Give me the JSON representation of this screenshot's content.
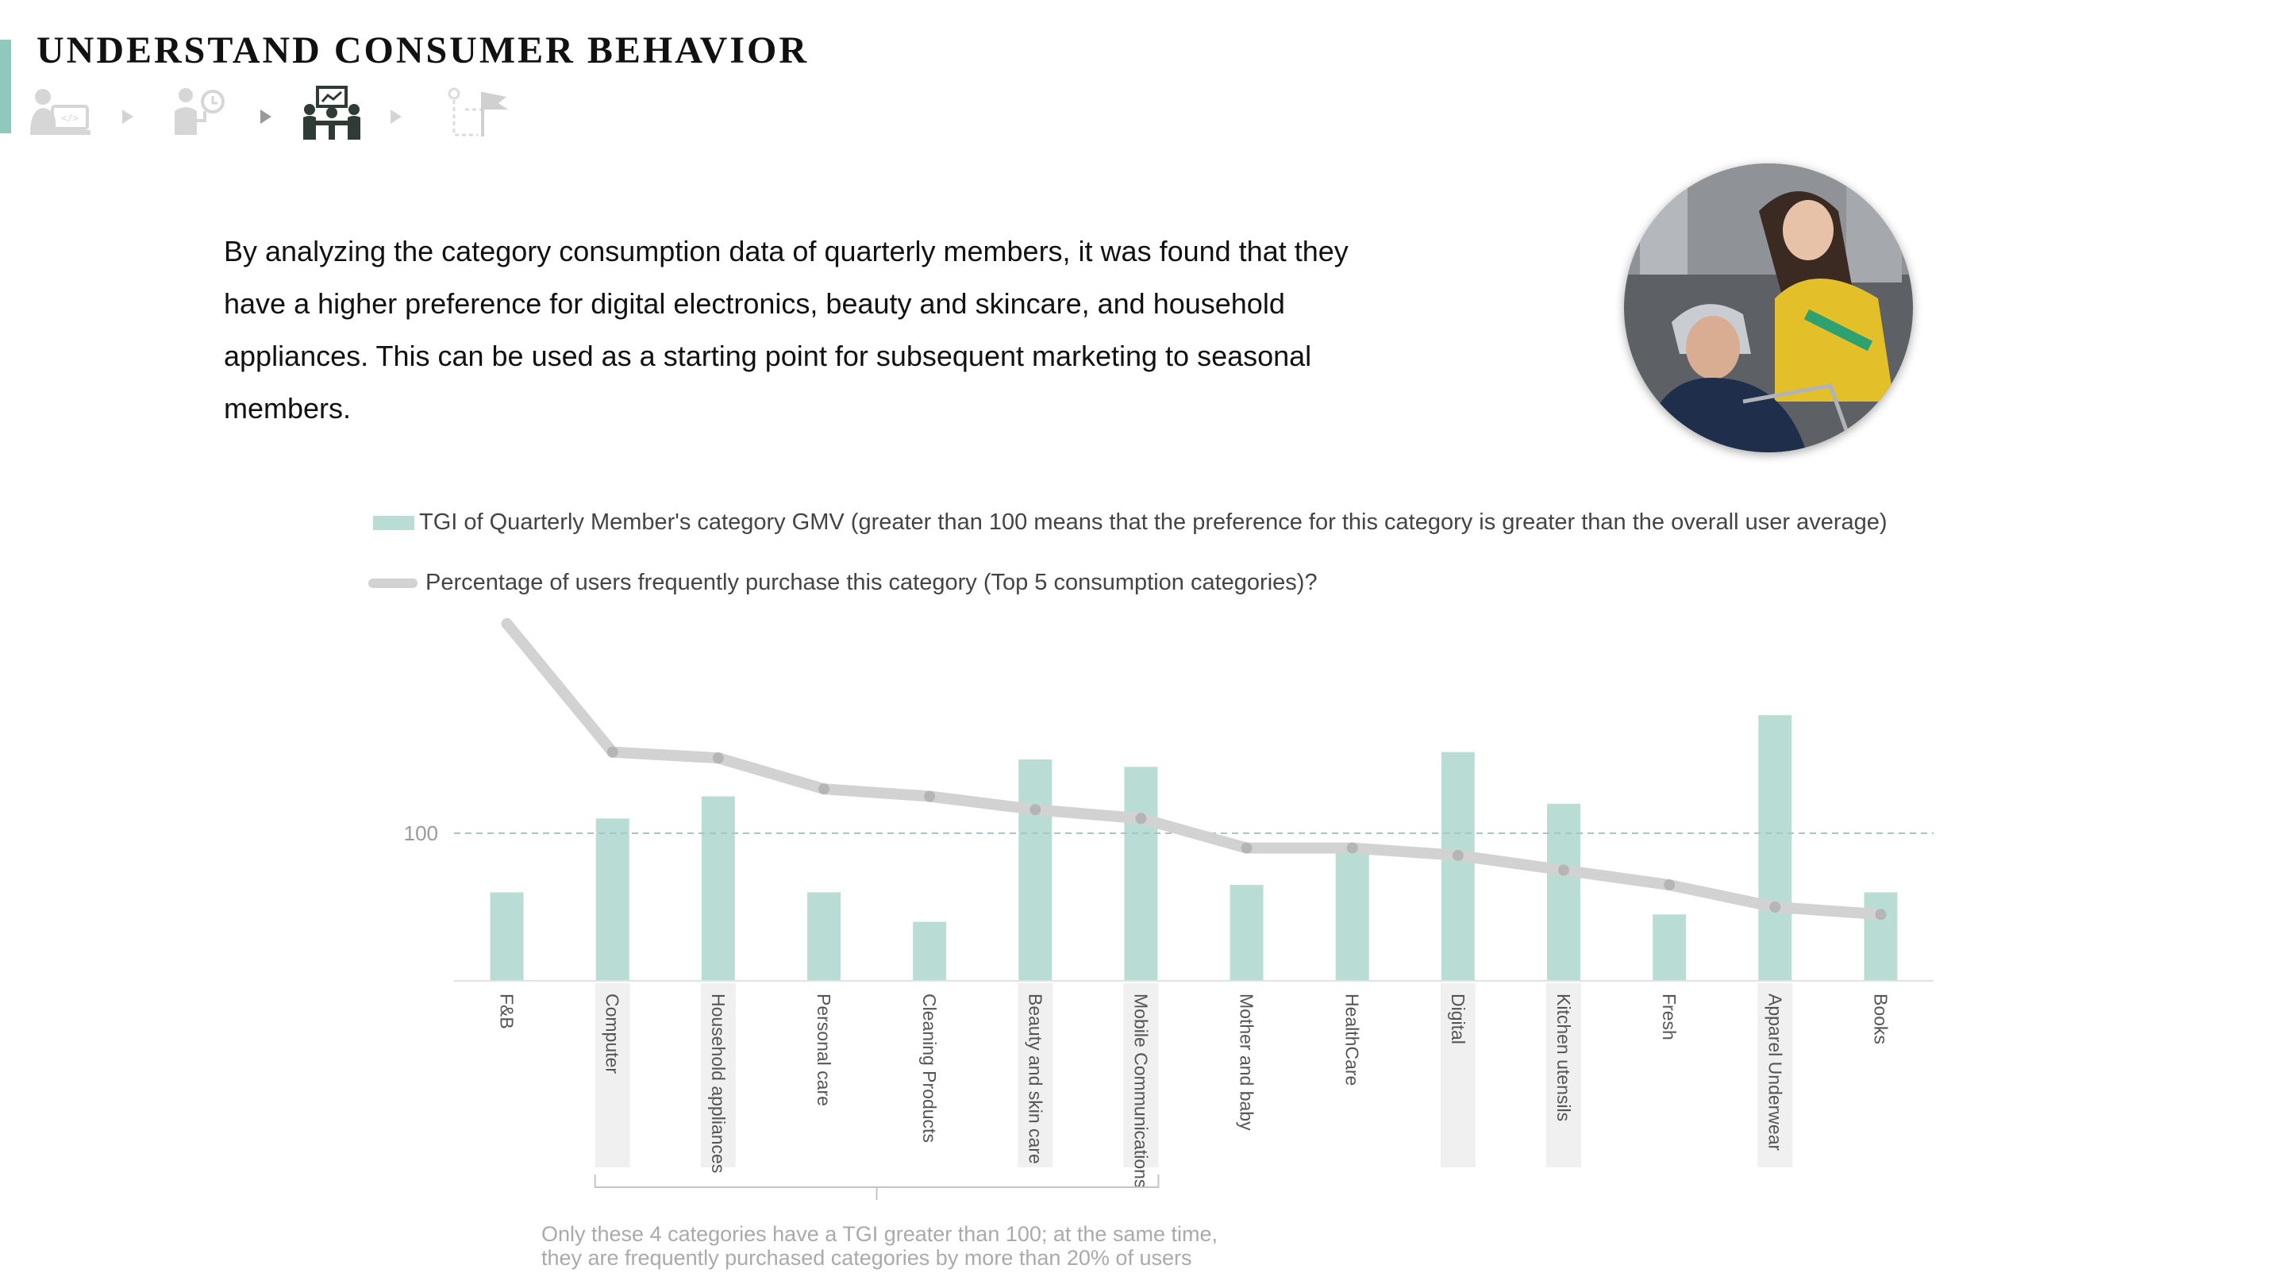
{
  "header": {
    "title": "UNDERSTAND CONSUMER BEHAVIOR",
    "steps": [
      {
        "icon": "person-computer-icon",
        "state": "inactive"
      },
      {
        "icon": "person-idea-icon",
        "state": "inactive"
      },
      {
        "icon": "meeting-presentation-icon",
        "state": "active"
      },
      {
        "icon": "route-flag-icon",
        "state": "inactive"
      }
    ]
  },
  "intro": {
    "text": "By analyzing the category consumption data of quarterly members, it was found that they have a higher preference for digital electronics, beauty and skincare, and household appliances. This can be used as a starting point for subsequent marketing to seasonal members."
  },
  "photo": {
    "icon": "couple-shopping-cart-photo"
  },
  "legend": {
    "bar": "TGI of Quarterly Member's category GMV (greater than 100 means that the preference for this category is greater than the overall user average)",
    "line": "Percentage of users frequently purchase this category (Top 5 consumption categories)?"
  },
  "note": {
    "line1": "Only these 4 categories have a TGI greater than 100; at the same time,",
    "line2": "they are frequently purchased categories by more than 20% of users"
  },
  "colors": {
    "bar": "#b9ddd5",
    "line": "#d2d2d2",
    "line_point": "#b5b5b5",
    "reference": "#a9c5cc",
    "highlight": "#f0f0f0",
    "accent": "#8fc9bd"
  },
  "chart_data": {
    "type": "bar",
    "categories": [
      "F&B",
      "Computer",
      "Household appliances",
      "Personal care",
      "Cleaning Products",
      "Beauty and skin care",
      "Mobile Communications",
      "Mother and baby",
      "HealthCare",
      "Digital",
      "Kitchen utensils",
      "Fresh",
      "Apparel Underwear",
      "Books"
    ],
    "series": [
      {
        "name": "TGI of Quarterly Member's category GMV (greater than 100 means that the preference for this category is greater than the overall user average)",
        "kind": "bar",
        "values": [
          60,
          110,
          125,
          60,
          40,
          150,
          145,
          65,
          90,
          155,
          120,
          45,
          180,
          60
        ]
      },
      {
        "name": "Percentage of users frequently purchase this category (Top 5 consumption categories)?",
        "kind": "line",
        "values": [
          242,
          155,
          151,
          130,
          125,
          116,
          110,
          90,
          90,
          85,
          75,
          65,
          50,
          45
        ]
      }
    ],
    "reference_line": {
      "value": 100,
      "label": "100"
    },
    "highlighted_categories": [
      "Computer",
      "Household appliances",
      "Beauty and skin care",
      "Mobile Communications",
      "Digital",
      "Kitchen utensils",
      "Apparel Underwear"
    ],
    "bracket_categories": [
      "Computer",
      "Mobile Communications"
    ],
    "ylim": [
      0,
      250
    ],
    "y_axis_visible": false,
    "grid": false
  }
}
